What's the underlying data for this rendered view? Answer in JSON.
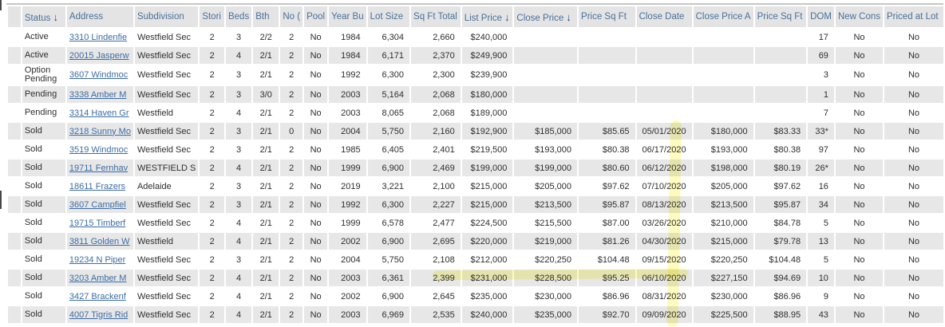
{
  "table": {
    "sort_indicator": "↓",
    "columns": [
      {
        "label": "",
        "sort": false
      },
      {
        "label": "Status",
        "sort": true
      },
      {
        "label": "Address",
        "sort": false
      },
      {
        "label": "Subdivision",
        "sort": false
      },
      {
        "label": "Stori",
        "sort": false
      },
      {
        "label": "Beds",
        "sort": false
      },
      {
        "label": "Bth",
        "sort": false
      },
      {
        "label": "No (",
        "sort": false
      },
      {
        "label": "Pool",
        "sort": false
      },
      {
        "label": "Year Bu",
        "sort": false
      },
      {
        "label": "Lot Size",
        "sort": false
      },
      {
        "label": "Sq Ft Total",
        "sort": false
      },
      {
        "label": "List Price",
        "sort": true
      },
      {
        "label": "Close Price",
        "sort": true
      },
      {
        "label": "Price Sq Ft",
        "sort": false
      },
      {
        "label": "Close Date",
        "sort": false
      },
      {
        "label": "Close Price A",
        "sort": false
      },
      {
        "label": "Price Sq Ft",
        "sort": false
      },
      {
        "label": "DOM",
        "sort": false
      },
      {
        "label": "New Cons",
        "sort": false
      },
      {
        "label": "Priced at Lot",
        "sort": false
      }
    ],
    "rows": [
      [
        "",
        "Active",
        "3310 Lindenfie",
        "Westfield Sec",
        "2",
        "3",
        "2/2",
        "2",
        "No",
        "1984",
        "6,304",
        "2,660",
        "$240,000",
        "",
        "",
        "",
        "",
        "",
        "17",
        "No",
        "No"
      ],
      [
        "",
        "Active",
        "20015 Jasperw",
        "Westfield Sec",
        "2",
        "4",
        "2/1",
        "2",
        "No",
        "1984",
        "6,171",
        "2,370",
        "$249,900",
        "",
        "",
        "",
        "",
        "",
        "69",
        "No",
        "No"
      ],
      [
        "",
        "Option Pending",
        "3607 Windmoc",
        "Westfield Sec",
        "2",
        "3",
        "2/1",
        "2",
        "No",
        "1992",
        "6,300",
        "2,300",
        "$239,900",
        "",
        "",
        "",
        "",
        "",
        "3",
        "No",
        "No"
      ],
      [
        "",
        "Pending",
        "3338 Amber M",
        "Westfield Sec",
        "2",
        "3",
        "3/0",
        "2",
        "No",
        "2003",
        "5,164",
        "2,068",
        "$180,000",
        "",
        "",
        "",
        "",
        "",
        "1",
        "No",
        "No"
      ],
      [
        "",
        "Pending",
        "3314 Haven Gr",
        "Westfield",
        "2",
        "4",
        "2/1",
        "2",
        "No",
        "2003",
        "8,065",
        "2,068",
        "$189,000",
        "",
        "",
        "",
        "",
        "",
        "7",
        "No",
        "No"
      ],
      [
        "",
        "Sold",
        "3218 Sunny Mo",
        "Westfield Sec",
        "2",
        "3",
        "2/1",
        "0",
        "No",
        "2004",
        "5,750",
        "2,160",
        "$192,900",
        "$185,000",
        "$85.65",
        "05/01/2020",
        "$180,000",
        "$83.33",
        "33*",
        "No",
        "No"
      ],
      [
        "",
        "Sold",
        "3519 Windmoc",
        "Westfield Sec",
        "2",
        "3",
        "2/1",
        "2",
        "No",
        "1985",
        "6,405",
        "2,401",
        "$219,500",
        "$193,000",
        "$80.38",
        "06/17/2020",
        "$193,000",
        "$80.38",
        "97",
        "No",
        "No"
      ],
      [
        "",
        "Sold",
        "19711 Fernhav",
        "WESTFIELD S",
        "2",
        "4",
        "2/1",
        "2",
        "No",
        "1999",
        "6,900",
        "2,469",
        "$199,000",
        "$199,000",
        "$80.60",
        "06/12/2020",
        "$198,000",
        "$80.19",
        "26*",
        "No",
        "No"
      ],
      [
        "",
        "Sold",
        "18611 Frazers",
        "Adelaide",
        "2",
        "3",
        "2/1",
        "2",
        "No",
        "2019",
        "3,221",
        "2,100",
        "$215,000",
        "$205,000",
        "$97.62",
        "07/10/2020",
        "$205,000",
        "$97.62",
        "16",
        "No",
        "No"
      ],
      [
        "",
        "Sold",
        "3607 Campfiel",
        "Westfield Sec",
        "2",
        "3",
        "2/1",
        "2",
        "No",
        "1992",
        "6,300",
        "2,227",
        "$215,000",
        "$213,500",
        "$95.87",
        "08/13/2020",
        "$213,500",
        "$95.87",
        "34",
        "No",
        "No"
      ],
      [
        "",
        "Sold",
        "19715 Timberf",
        "Westfield Sec",
        "2",
        "4",
        "2/1",
        "2",
        "No",
        "1999",
        "6,578",
        "2,477",
        "$224,500",
        "$215,500",
        "$87.00",
        "03/26/2020",
        "$210,000",
        "$84.78",
        "5",
        "No",
        "No"
      ],
      [
        "",
        "Sold",
        "3811 Golden W",
        "Westfield",
        "2",
        "4",
        "2/1",
        "2",
        "No",
        "2002",
        "6,900",
        "2,695",
        "$220,000",
        "$219,000",
        "$81.26",
        "04/30/2020",
        "$215,000",
        "$79.78",
        "13",
        "No",
        "No"
      ],
      [
        "",
        "Sold",
        "19234 N Piper",
        "Westfield Sec",
        "2",
        "3",
        "2/1",
        "2",
        "No",
        "2004",
        "5,750",
        "2,108",
        "$212,000",
        "$220,250",
        "$104.48",
        "09/15/2020",
        "$220,250",
        "$104.48",
        "5",
        "No",
        "No"
      ],
      [
        "",
        "Sold",
        "3203 Amber M",
        "Westfield Sec",
        "2",
        "4",
        "2/1",
        "2",
        "No",
        "2003",
        "6,361",
        "2,399",
        "$231,000",
        "$228,500",
        "$95.25",
        "06/10/2020",
        "$227,150",
        "$94.69",
        "10",
        "No",
        "No"
      ],
      [
        "",
        "Sold",
        "3427 Brackenf",
        "Westfield Sec",
        "2",
        "4",
        "2/1",
        "2",
        "No",
        "2002",
        "6,900",
        "2,645",
        "$235,000",
        "$230,000",
        "$86.96",
        "08/31/2020",
        "$230,000",
        "$86.96",
        "9",
        "No",
        "No"
      ],
      [
        "",
        "Sold",
        "4007 Tigris Rid",
        "Westfield Sec",
        "2",
        "4",
        "2/1",
        "2",
        "No",
        "2003",
        "6,969",
        "2,535",
        "$240,000",
        "$235,000",
        "$92.70",
        "09/09/2020",
        "$225,500",
        "$88.95",
        "43",
        "No",
        "No"
      ]
    ]
  },
  "colors": {
    "highlighter": "rgba(250,240,40,0.55)",
    "header_text": "#48719c",
    "link": "#3b6ca5",
    "row_alt": "#e7e7e7"
  }
}
